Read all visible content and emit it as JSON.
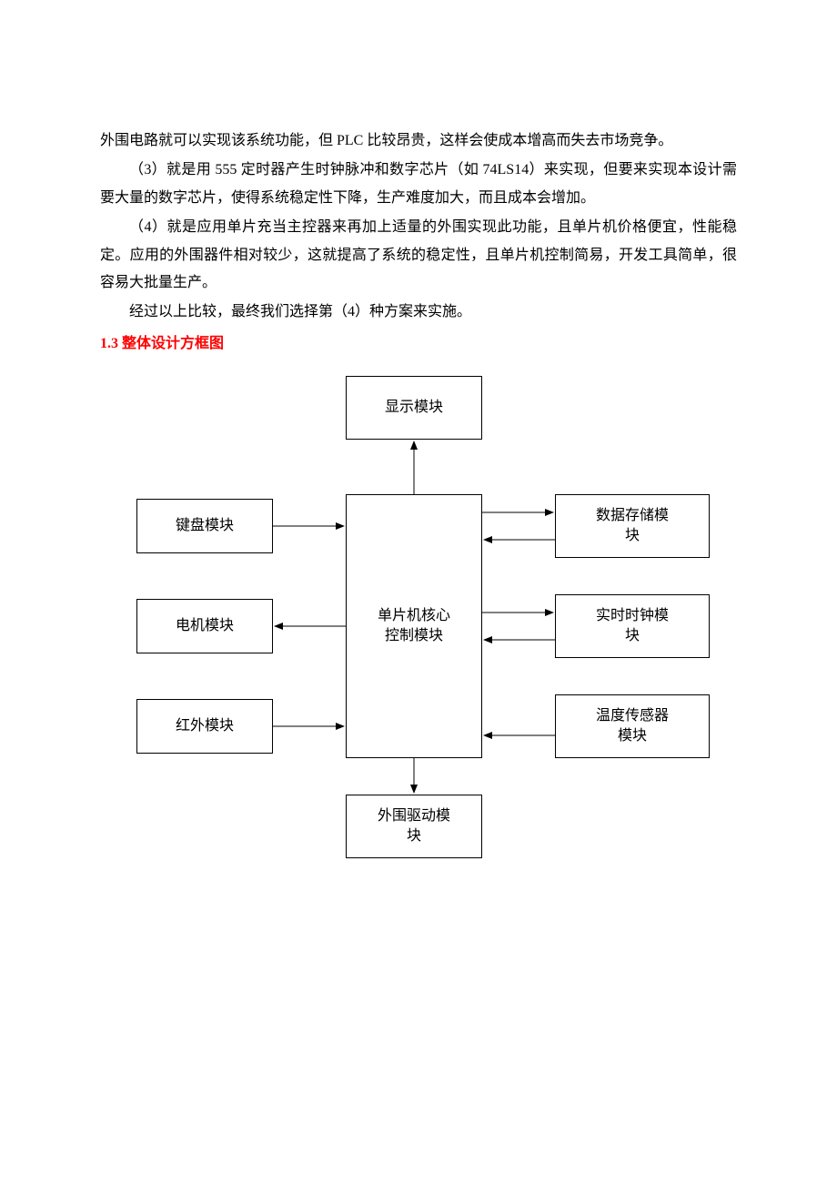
{
  "paragraphs": {
    "p1": "外围电路就可以实现该系统功能，但 PLC 比较昂贵，这样会使成本增高而失去市场竞争。",
    "p2": "（3）就是用 555 定时器产生时钟脉冲和数字芯片（如 74LS14）来实现，但要来实现本设计需要大量的数字芯片，使得系统稳定性下降，生产难度加大，而且成本会增加。",
    "p3": "（4）就是应用单片充当主控器来再加上适量的外围实现此功能，且单片机价格便宜，性能稳定。应用的外围器件相对较少，这就提高了系统的稳定性，且单片机控制简易，开发工具简单，很容易大批量生产。",
    "p4": "经过以上比较，最终我们选择第（4）种方案来实施。"
  },
  "heading": "1.3  整体设计方框图",
  "diagram": {
    "type": "flowchart",
    "background_color": "#ffffff",
    "border_color": "#000000",
    "text_color": "#000000",
    "font_size": 16,
    "nodes": {
      "top": {
        "label": "显示模块"
      },
      "center": {
        "label": "单片机核心\n控制模块"
      },
      "left1": {
        "label": "键盘模块"
      },
      "left2": {
        "label": "电机模块"
      },
      "left3": {
        "label": "红外模块"
      },
      "right1": {
        "label": "数据存储模\n块"
      },
      "right2": {
        "label": "实时时钟模\n块"
      },
      "right3": {
        "label": "温度传感器\n模块"
      },
      "bottom": {
        "label": "外围驱动模\n块"
      }
    },
    "arrows": [
      {
        "from": "center",
        "to": "top",
        "direction": "up"
      },
      {
        "from": "left1",
        "to": "center",
        "direction": "right"
      },
      {
        "from": "center",
        "to": "left2",
        "direction": "left"
      },
      {
        "from": "left3",
        "to": "center",
        "direction": "right"
      },
      {
        "from": "center",
        "to": "right1",
        "direction": "bidirectional"
      },
      {
        "from": "center",
        "to": "right2",
        "direction": "bidirectional"
      },
      {
        "from": "right3",
        "to": "center",
        "direction": "left"
      },
      {
        "from": "center",
        "to": "bottom",
        "direction": "down"
      }
    ]
  },
  "colors": {
    "heading_color": "#ff0000",
    "text_color": "#000000",
    "background": "#ffffff"
  }
}
